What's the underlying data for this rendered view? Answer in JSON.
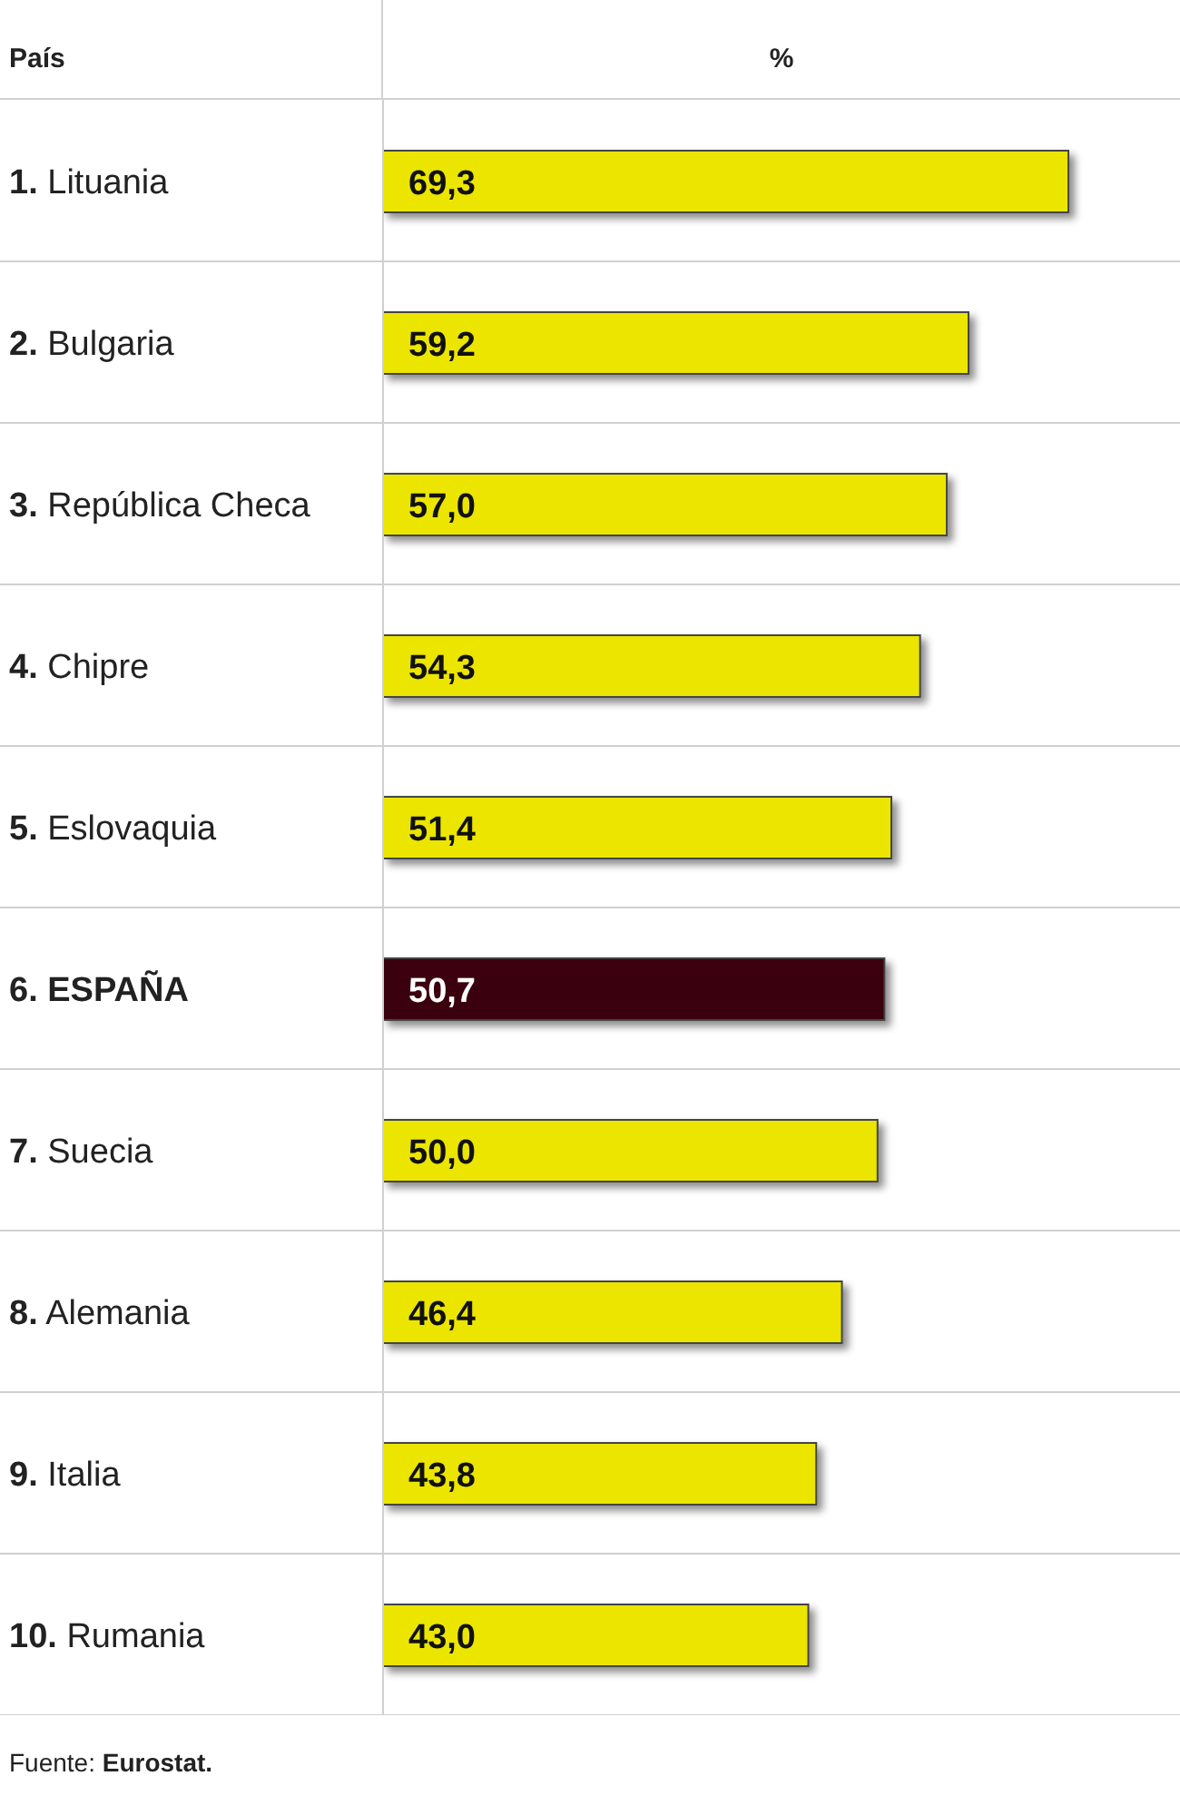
{
  "chart_data": {
    "type": "bar",
    "orientation": "horizontal",
    "ylabel": "País",
    "xlabel": "%",
    "categories": [
      "1. Lituania",
      "2. Bulgaria",
      "3. República Checa",
      "4. Chipre",
      "5. Eslovaquia",
      "6. ESPAÑA",
      "7. Suecia",
      "8. Alemania",
      "9. Italia",
      "10. Rumania"
    ],
    "values": [
      69.3,
      59.2,
      57.0,
      54.3,
      51.4,
      50.7,
      50.0,
      46.4,
      43.8,
      43.0
    ],
    "value_labels": [
      "69,3",
      "59,2",
      "57,0",
      "54,3",
      "51,4",
      "50,7",
      "50,0",
      "46,4",
      "43,8",
      "43,0"
    ],
    "colors": [
      "#ebe500",
      "#ebe500",
      "#ebe500",
      "#ebe500",
      "#ebe500",
      "#3a0008",
      "#ebe500",
      "#ebe500",
      "#ebe500",
      "#ebe500"
    ],
    "grid": true,
    "annotations": [
      "Fuente: Eurostat."
    ]
  }
}
